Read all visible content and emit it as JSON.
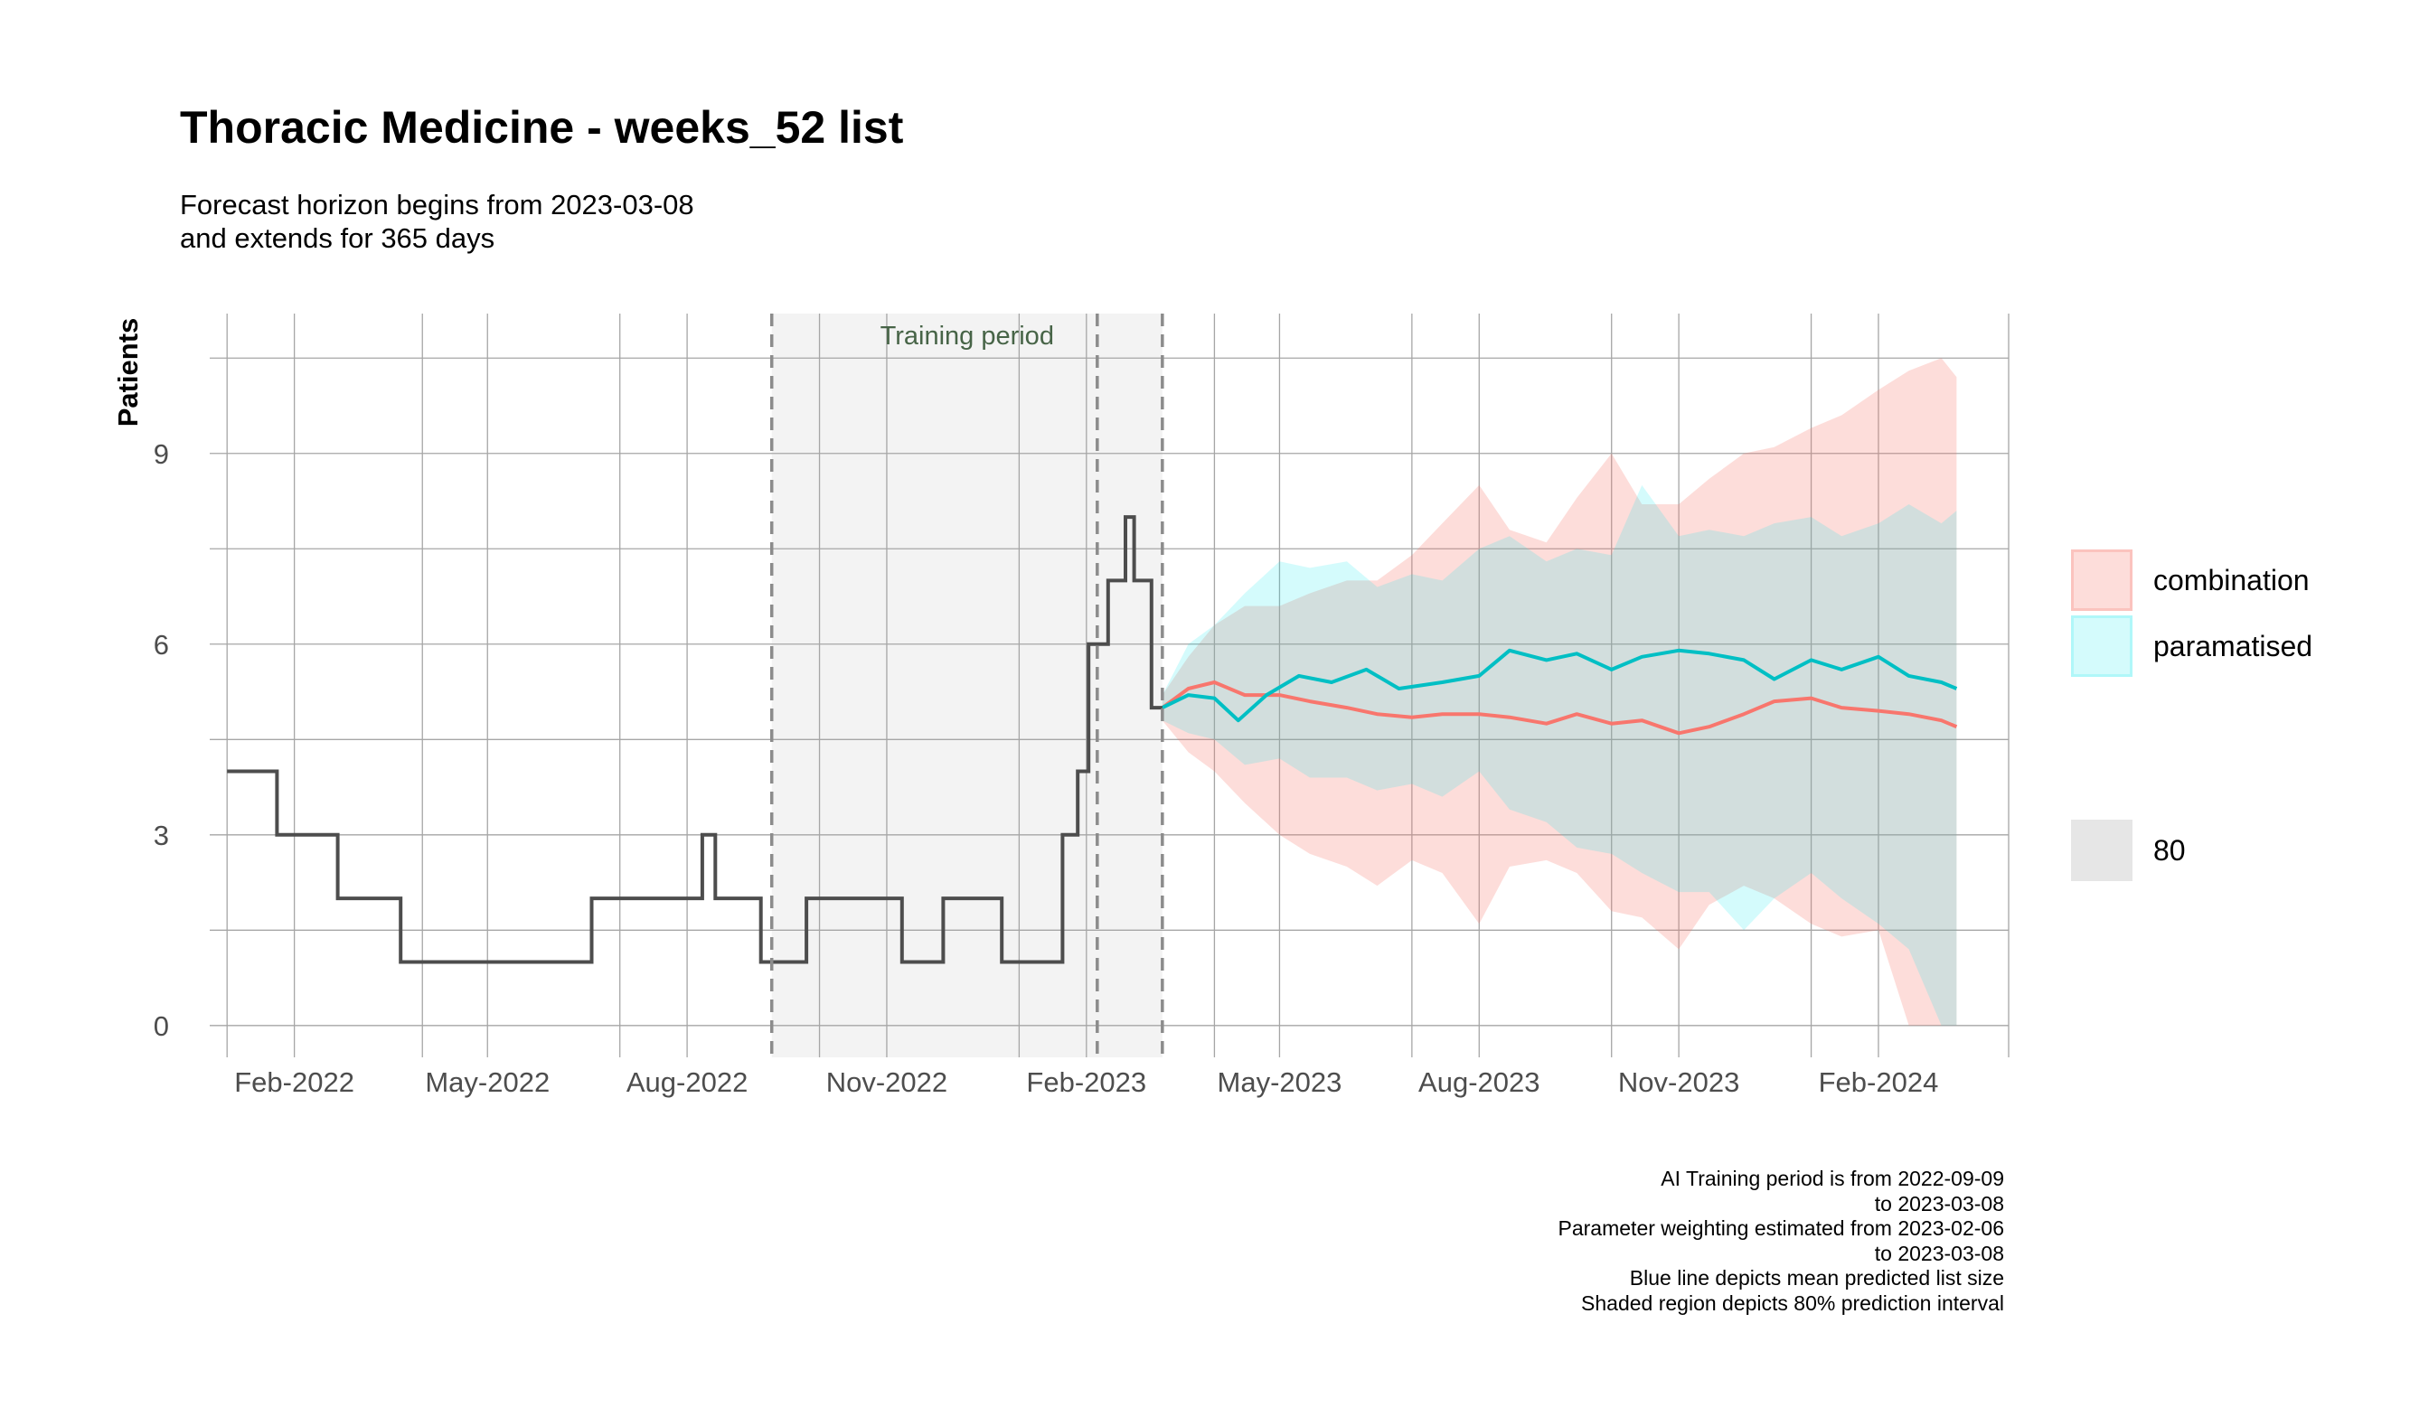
{
  "title": "Thoracic Medicine - weeks_52 list",
  "subtitle_lines": [
    "Forecast horizon begins from 2023-03-08",
    "and extends for 365 days"
  ],
  "caption_lines": [
    "AI Training period is from 2022-09-09",
    "to 2023-03-08",
    "Parameter weighting estimated from 2023-02-06",
    "to 2023-03-08",
    "Blue line depicts mean predicted list size",
    "Shaded region depicts 80% prediction interval"
  ],
  "chart_data": {
    "type": "line",
    "title": "Thoracic Medicine - weeks_52 list",
    "xlabel": "",
    "ylabel": "Patients",
    "x_axis": {
      "type": "date",
      "range": [
        "2021-12-24",
        "2024-04-01"
      ],
      "tick_dates": [
        "2022-02-01",
        "2022-05-01",
        "2022-08-01",
        "2022-11-01",
        "2023-02-01",
        "2023-05-01",
        "2023-08-01",
        "2023-11-01",
        "2024-02-01"
      ],
      "tick_labels": [
        "Feb-2022",
        "May-2022",
        "Aug-2022",
        "Nov-2022",
        "Feb-2023",
        "May-2023",
        "Aug-2023",
        "Nov-2023",
        "Feb-2024"
      ],
      "minor_gridlines": [
        "2022-01-01",
        "2022-04-01",
        "2022-07-01",
        "2022-10-01",
        "2023-01-01",
        "2023-04-01",
        "2023-07-01",
        "2023-10-01",
        "2024-01-01",
        "2024-04-01"
      ]
    },
    "y_axis": {
      "range": [
        -0.5,
        11.2
      ],
      "ticks": [
        0,
        3,
        6,
        9
      ],
      "tick_labels": [
        "0",
        "3",
        "6",
        "9"
      ],
      "minor_gridlines": [
        1.5,
        4.5,
        7.5,
        10.5
      ]
    },
    "grid": true,
    "legend_position": "right",
    "annotation": {
      "shaded_region": [
        "2022-09-09",
        "2023-03-08"
      ],
      "label": "Training period",
      "vlines": [
        "2022-09-09",
        "2023-02-06",
        "2023-03-08"
      ]
    },
    "colors": {
      "observed": "#4d4d4d",
      "combination": "#F8766D",
      "paramatised": "#00BFC4",
      "combination_band": "#F8766D",
      "paramatised_band": "#00E5EE",
      "training_shade": "#f3f3f3",
      "vline": "#8c8c8c",
      "grid": "#a6a6a6",
      "annotation_text": "#476447",
      "interval_key": "#e6e6e6"
    },
    "observed": [
      {
        "x": "2022-01-01",
        "y": 4
      },
      {
        "x": "2022-01-24",
        "y": 4
      },
      {
        "x": "2022-01-24",
        "y": 3
      },
      {
        "x": "2022-02-21",
        "y": 3
      },
      {
        "x": "2022-02-21",
        "y": 2
      },
      {
        "x": "2022-03-22",
        "y": 2
      },
      {
        "x": "2022-03-22",
        "y": 1
      },
      {
        "x": "2022-06-18",
        "y": 1
      },
      {
        "x": "2022-06-18",
        "y": 2
      },
      {
        "x": "2022-08-08",
        "y": 2
      },
      {
        "x": "2022-08-08",
        "y": 3
      },
      {
        "x": "2022-08-14",
        "y": 3
      },
      {
        "x": "2022-08-14",
        "y": 2
      },
      {
        "x": "2022-09-04",
        "y": 2
      },
      {
        "x": "2022-09-04",
        "y": 1
      },
      {
        "x": "2022-09-25",
        "y": 1
      },
      {
        "x": "2022-09-25",
        "y": 2
      },
      {
        "x": "2022-11-08",
        "y": 2
      },
      {
        "x": "2022-11-08",
        "y": 1
      },
      {
        "x": "2022-11-27",
        "y": 1
      },
      {
        "x": "2022-11-27",
        "y": 2
      },
      {
        "x": "2022-12-24",
        "y": 2
      },
      {
        "x": "2022-12-24",
        "y": 1
      },
      {
        "x": "2023-01-21",
        "y": 1
      },
      {
        "x": "2023-01-21",
        "y": 3
      },
      {
        "x": "2023-01-28",
        "y": 3
      },
      {
        "x": "2023-01-28",
        "y": 4
      },
      {
        "x": "2023-02-02",
        "y": 4
      },
      {
        "x": "2023-02-02",
        "y": 6
      },
      {
        "x": "2023-02-11",
        "y": 6
      },
      {
        "x": "2023-02-11",
        "y": 7
      },
      {
        "x": "2023-02-19",
        "y": 7
      },
      {
        "x": "2023-02-19",
        "y": 8
      },
      {
        "x": "2023-02-23",
        "y": 8
      },
      {
        "x": "2023-02-23",
        "y": 7
      },
      {
        "x": "2023-03-03",
        "y": 7
      },
      {
        "x": "2023-03-03",
        "y": 5
      },
      {
        "x": "2023-03-08",
        "y": 5
      }
    ],
    "series": [
      {
        "name": "combination",
        "mean": [
          {
            "x": "2023-03-08",
            "y": 5.0
          },
          {
            "x": "2023-03-20",
            "y": 5.3
          },
          {
            "x": "2023-04-01",
            "y": 5.4
          },
          {
            "x": "2023-04-15",
            "y": 5.2
          },
          {
            "x": "2023-05-01",
            "y": 5.2
          },
          {
            "x": "2023-05-15",
            "y": 5.1
          },
          {
            "x": "2023-06-01",
            "y": 5.0
          },
          {
            "x": "2023-06-15",
            "y": 4.9
          },
          {
            "x": "2023-07-01",
            "y": 4.85
          },
          {
            "x": "2023-07-15",
            "y": 4.9
          },
          {
            "x": "2023-08-01",
            "y": 4.9
          },
          {
            "x": "2023-08-15",
            "y": 4.85
          },
          {
            "x": "2023-09-01",
            "y": 4.75
          },
          {
            "x": "2023-09-15",
            "y": 4.9
          },
          {
            "x": "2023-10-01",
            "y": 4.75
          },
          {
            "x": "2023-10-15",
            "y": 4.8
          },
          {
            "x": "2023-11-01",
            "y": 4.6
          },
          {
            "x": "2023-11-15",
            "y": 4.7
          },
          {
            "x": "2023-12-01",
            "y": 4.9
          },
          {
            "x": "2023-12-15",
            "y": 5.1
          },
          {
            "x": "2024-01-01",
            "y": 5.15
          },
          {
            "x": "2024-01-15",
            "y": 5.0
          },
          {
            "x": "2024-02-01",
            "y": 4.95
          },
          {
            "x": "2024-02-15",
            "y": 4.9
          },
          {
            "x": "2024-03-01",
            "y": 4.8
          },
          {
            "x": "2024-03-08",
            "y": 4.7
          }
        ],
        "lower": [
          {
            "x": "2023-03-08",
            "y": 4.8
          },
          {
            "x": "2023-03-20",
            "y": 4.3
          },
          {
            "x": "2023-04-01",
            "y": 4.0
          },
          {
            "x": "2023-04-15",
            "y": 3.5
          },
          {
            "x": "2023-05-01",
            "y": 3.0
          },
          {
            "x": "2023-05-15",
            "y": 2.7
          },
          {
            "x": "2023-06-01",
            "y": 2.5
          },
          {
            "x": "2023-06-15",
            "y": 2.2
          },
          {
            "x": "2023-07-01",
            "y": 2.6
          },
          {
            "x": "2023-07-15",
            "y": 2.4
          },
          {
            "x": "2023-08-01",
            "y": 1.6
          },
          {
            "x": "2023-08-15",
            "y": 2.5
          },
          {
            "x": "2023-09-01",
            "y": 2.6
          },
          {
            "x": "2023-09-15",
            "y": 2.4
          },
          {
            "x": "2023-10-01",
            "y": 1.8
          },
          {
            "x": "2023-10-15",
            "y": 1.7
          },
          {
            "x": "2023-11-01",
            "y": 1.2
          },
          {
            "x": "2023-11-15",
            "y": 1.9
          },
          {
            "x": "2023-12-01",
            "y": 2.2
          },
          {
            "x": "2023-12-15",
            "y": 2.0
          },
          {
            "x": "2024-01-01",
            "y": 1.6
          },
          {
            "x": "2024-01-15",
            "y": 1.4
          },
          {
            "x": "2024-02-01",
            "y": 1.5
          },
          {
            "x": "2024-02-15",
            "y": 0.0
          },
          {
            "x": "2024-03-01",
            "y": 0.0
          },
          {
            "x": "2024-03-08",
            "y": 0.0
          }
        ],
        "upper": [
          {
            "x": "2023-03-08",
            "y": 5.2
          },
          {
            "x": "2023-03-20",
            "y": 5.8
          },
          {
            "x": "2023-04-01",
            "y": 6.3
          },
          {
            "x": "2023-04-15",
            "y": 6.6
          },
          {
            "x": "2023-05-01",
            "y": 6.6
          },
          {
            "x": "2023-05-15",
            "y": 6.8
          },
          {
            "x": "2023-06-01",
            "y": 7.0
          },
          {
            "x": "2023-06-15",
            "y": 7.0
          },
          {
            "x": "2023-07-01",
            "y": 7.4
          },
          {
            "x": "2023-07-15",
            "y": 7.9
          },
          {
            "x": "2023-08-01",
            "y": 8.5
          },
          {
            "x": "2023-08-15",
            "y": 7.8
          },
          {
            "x": "2023-09-01",
            "y": 7.6
          },
          {
            "x": "2023-09-15",
            "y": 8.3
          },
          {
            "x": "2023-10-01",
            "y": 9.0
          },
          {
            "x": "2023-10-15",
            "y": 8.2
          },
          {
            "x": "2023-11-01",
            "y": 8.2
          },
          {
            "x": "2023-11-15",
            "y": 8.6
          },
          {
            "x": "2023-12-01",
            "y": 9.0
          },
          {
            "x": "2023-12-15",
            "y": 9.1
          },
          {
            "x": "2024-01-01",
            "y": 9.4
          },
          {
            "x": "2024-01-15",
            "y": 9.6
          },
          {
            "x": "2024-02-01",
            "y": 10.0
          },
          {
            "x": "2024-02-15",
            "y": 10.3
          },
          {
            "x": "2024-03-01",
            "y": 10.5
          },
          {
            "x": "2024-03-08",
            "y": 10.2
          }
        ]
      },
      {
        "name": "paramatised",
        "mean": [
          {
            "x": "2023-03-08",
            "y": 5.0
          },
          {
            "x": "2023-03-20",
            "y": 5.2
          },
          {
            "x": "2023-04-01",
            "y": 5.15
          },
          {
            "x": "2023-04-12",
            "y": 4.8
          },
          {
            "x": "2023-04-25",
            "y": 5.2
          },
          {
            "x": "2023-05-10",
            "y": 5.5
          },
          {
            "x": "2023-05-25",
            "y": 5.4
          },
          {
            "x": "2023-06-10",
            "y": 5.6
          },
          {
            "x": "2023-06-25",
            "y": 5.3
          },
          {
            "x": "2023-07-15",
            "y": 5.4
          },
          {
            "x": "2023-08-01",
            "y": 5.5
          },
          {
            "x": "2023-08-15",
            "y": 5.9
          },
          {
            "x": "2023-09-01",
            "y": 5.75
          },
          {
            "x": "2023-09-15",
            "y": 5.85
          },
          {
            "x": "2023-10-01",
            "y": 5.6
          },
          {
            "x": "2023-10-15",
            "y": 5.8
          },
          {
            "x": "2023-11-01",
            "y": 5.9
          },
          {
            "x": "2023-11-15",
            "y": 5.85
          },
          {
            "x": "2023-12-01",
            "y": 5.75
          },
          {
            "x": "2023-12-15",
            "y": 5.45
          },
          {
            "x": "2024-01-01",
            "y": 5.75
          },
          {
            "x": "2024-01-15",
            "y": 5.6
          },
          {
            "x": "2024-02-01",
            "y": 5.8
          },
          {
            "x": "2024-02-15",
            "y": 5.5
          },
          {
            "x": "2024-03-01",
            "y": 5.4
          },
          {
            "x": "2024-03-08",
            "y": 5.3
          }
        ],
        "lower": [
          {
            "x": "2023-03-08",
            "y": 4.8
          },
          {
            "x": "2023-03-20",
            "y": 4.6
          },
          {
            "x": "2023-04-01",
            "y": 4.5
          },
          {
            "x": "2023-04-15",
            "y": 4.1
          },
          {
            "x": "2023-05-01",
            "y": 4.2
          },
          {
            "x": "2023-05-15",
            "y": 3.9
          },
          {
            "x": "2023-06-01",
            "y": 3.9
          },
          {
            "x": "2023-06-15",
            "y": 3.7
          },
          {
            "x": "2023-07-01",
            "y": 3.8
          },
          {
            "x": "2023-07-15",
            "y": 3.6
          },
          {
            "x": "2023-08-01",
            "y": 4.0
          },
          {
            "x": "2023-08-15",
            "y": 3.4
          },
          {
            "x": "2023-09-01",
            "y": 3.2
          },
          {
            "x": "2023-09-15",
            "y": 2.8
          },
          {
            "x": "2023-10-01",
            "y": 2.7
          },
          {
            "x": "2023-10-15",
            "y": 2.4
          },
          {
            "x": "2023-11-01",
            "y": 2.1
          },
          {
            "x": "2023-11-15",
            "y": 2.1
          },
          {
            "x": "2023-12-01",
            "y": 1.5
          },
          {
            "x": "2023-12-15",
            "y": 2.0
          },
          {
            "x": "2024-01-01",
            "y": 2.4
          },
          {
            "x": "2024-01-15",
            "y": 2.0
          },
          {
            "x": "2024-02-01",
            "y": 1.6
          },
          {
            "x": "2024-02-15",
            "y": 1.2
          },
          {
            "x": "2024-03-01",
            "y": 0.0
          },
          {
            "x": "2024-03-08",
            "y": 0.0
          }
        ],
        "upper": [
          {
            "x": "2023-03-08",
            "y": 5.2
          },
          {
            "x": "2023-03-20",
            "y": 6.0
          },
          {
            "x": "2023-04-01",
            "y": 6.3
          },
          {
            "x": "2023-04-15",
            "y": 6.8
          },
          {
            "x": "2023-05-01",
            "y": 7.3
          },
          {
            "x": "2023-05-15",
            "y": 7.2
          },
          {
            "x": "2023-06-01",
            "y": 7.3
          },
          {
            "x": "2023-06-15",
            "y": 6.9
          },
          {
            "x": "2023-07-01",
            "y": 7.1
          },
          {
            "x": "2023-07-15",
            "y": 7.0
          },
          {
            "x": "2023-08-01",
            "y": 7.5
          },
          {
            "x": "2023-08-15",
            "y": 7.7
          },
          {
            "x": "2023-09-01",
            "y": 7.3
          },
          {
            "x": "2023-09-15",
            "y": 7.5
          },
          {
            "x": "2023-10-01",
            "y": 7.4
          },
          {
            "x": "2023-10-15",
            "y": 8.5
          },
          {
            "x": "2023-11-01",
            "y": 7.7
          },
          {
            "x": "2023-11-15",
            "y": 7.8
          },
          {
            "x": "2023-12-01",
            "y": 7.7
          },
          {
            "x": "2023-12-15",
            "y": 7.9
          },
          {
            "x": "2024-01-01",
            "y": 8.0
          },
          {
            "x": "2024-01-15",
            "y": 7.7
          },
          {
            "x": "2024-02-01",
            "y": 7.9
          },
          {
            "x": "2024-02-15",
            "y": 8.2
          },
          {
            "x": "2024-03-01",
            "y": 7.9
          },
          {
            "x": "2024-03-08",
            "y": 8.1
          }
        ]
      }
    ],
    "legend": {
      "items": [
        {
          "label": "combination",
          "color": "#F8766D"
        },
        {
          "label": "paramatised",
          "color": "#00E5EE"
        },
        {
          "label": "80",
          "color": "#e6e6e6"
        }
      ]
    }
  }
}
